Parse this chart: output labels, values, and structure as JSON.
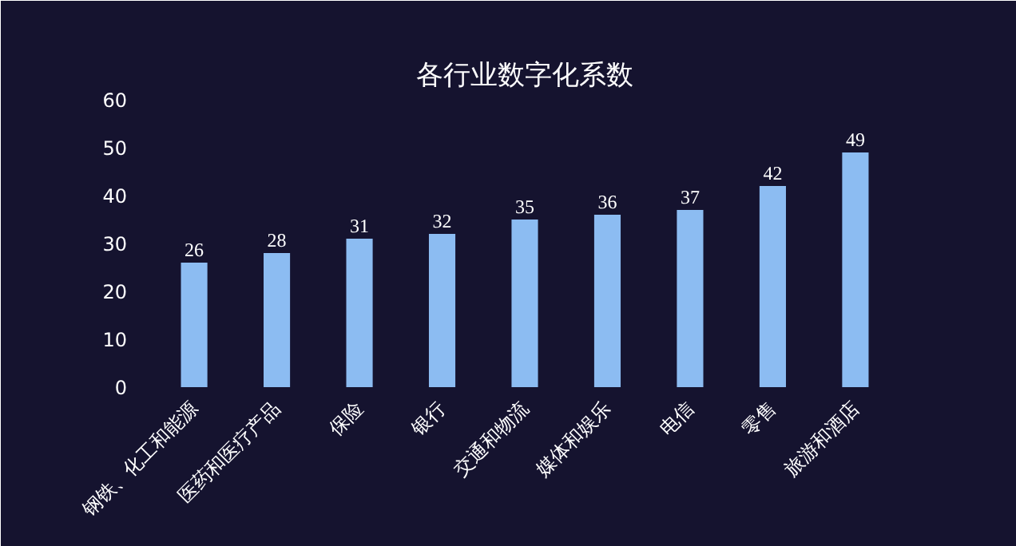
{
  "chart_data": {
    "type": "bar",
    "title": "各行业数字化系数",
    "categories": [
      "钢铁、化工和能源",
      "医药和医疗产品",
      "保险",
      "银行",
      "交通和物流",
      "媒体和娱乐",
      "电信",
      "零售",
      "旅游和酒店"
    ],
    "values": [
      26,
      28,
      31,
      32,
      35,
      36,
      37,
      42,
      49
    ],
    "color": "#8cbcf2",
    "ylim": [
      0,
      60
    ],
    "yticks": [
      0,
      10,
      20,
      30,
      40,
      50,
      60
    ],
    "data_labels": true
  }
}
